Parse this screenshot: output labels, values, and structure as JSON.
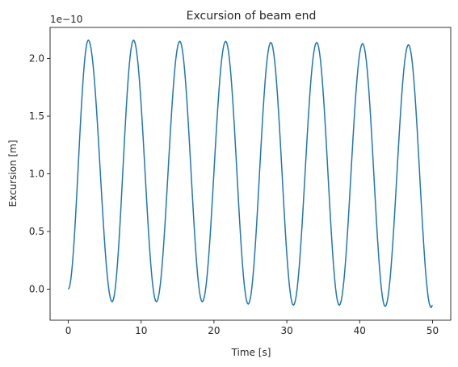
{
  "chart_data": {
    "type": "line",
    "title": "Excursion of beam end",
    "xlabel": "Time [s]",
    "ylabel": "Excursion [m]",
    "y_offset_label": "1e−10",
    "xlim": [
      -2.5,
      52.5
    ],
    "ylim": [
      -0.27,
      2.27
    ],
    "xticks": [
      0,
      10,
      20,
      30,
      40,
      50
    ],
    "xtick_labels": [
      "0",
      "10",
      "20",
      "30",
      "40",
      "50"
    ],
    "yticks": [
      0.0,
      0.5,
      1.0,
      1.5,
      2.0
    ],
    "ytick_labels": [
      "0.0",
      "0.5",
      "1.0",
      "1.5",
      "2.0"
    ],
    "grid": false,
    "line_color": "#1f77b4",
    "series": [
      {
        "x": [
          0,
          2.75,
          6.02,
          8.96,
          12.1,
          15.3,
          18.4,
          21.6,
          24.7,
          27.8,
          30.9,
          34.1,
          37.2,
          40.4,
          43.5,
          46.7,
          49.8,
          50
        ],
        "values": [
          0.0,
          2.16,
          -0.11,
          2.16,
          -0.11,
          2.15,
          -0.11,
          2.15,
          -0.13,
          2.14,
          -0.14,
          2.14,
          -0.14,
          2.13,
          -0.15,
          2.12,
          -0.16,
          -0.14
        ]
      }
    ]
  }
}
